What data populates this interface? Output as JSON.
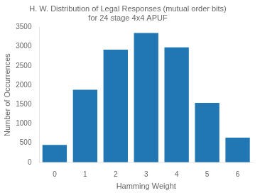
{
  "chart_data": {
    "type": "bar",
    "title": "H. W. Distribution of Legal Responses (mutual order bits)\nfor 24 stage 4x4 APUF",
    "x_label": "Hamming Weight",
    "y_label": "Number of Occurrences",
    "categories": [
      0,
      1,
      2,
      3,
      4,
      5,
      6
    ],
    "values": [
      450,
      1880,
      2920,
      3350,
      2980,
      1540,
      640
    ],
    "color": "#2077b4",
    "ylim": [
      0,
      3500
    ],
    "yticks": [
      0,
      500,
      1000,
      1500,
      2000,
      2500,
      3000,
      3500
    ],
    "grid": false
  }
}
